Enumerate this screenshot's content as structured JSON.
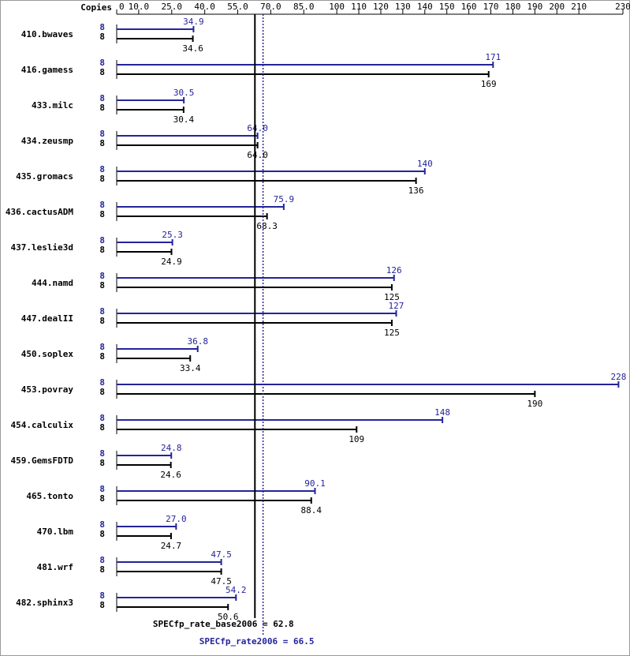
{
  "chart_data": {
    "type": "hbar",
    "copies_header": "Copies",
    "categories": [
      "410.bwaves",
      "416.gamess",
      "433.milc",
      "434.zeusmp",
      "435.gromacs",
      "436.cactusADM",
      "437.leslie3d",
      "444.namd",
      "447.dealII",
      "450.soplex",
      "453.povray",
      "454.calculix",
      "459.GemsFDTD",
      "465.tonto",
      "470.lbm",
      "481.wrf",
      "482.sphinx3"
    ],
    "series": [
      {
        "color": "#24249a",
        "copies": [
          8,
          8,
          8,
          8,
          8,
          8,
          8,
          8,
          8,
          8,
          8,
          8,
          8,
          8,
          8,
          8,
          8
        ],
        "values": [
          34.9,
          171,
          30.5,
          64.0,
          140,
          75.9,
          25.3,
          126,
          127,
          36.8,
          228,
          148,
          24.8,
          90.1,
          27.0,
          47.5,
          54.2
        ],
        "value_labels": [
          "34.9",
          "171",
          "30.5",
          "64.0",
          "140",
          "75.9",
          "25.3",
          "126",
          "127",
          "36.8",
          "228",
          "148",
          "24.8",
          "90.1",
          "27.0",
          "47.5",
          "54.2"
        ]
      },
      {
        "color": "#000000",
        "copies": [
          8,
          8,
          8,
          8,
          8,
          8,
          8,
          8,
          8,
          8,
          8,
          8,
          8,
          8,
          8,
          8,
          8
        ],
        "values": [
          34.6,
          169,
          30.4,
          64.0,
          136,
          68.3,
          24.9,
          125,
          125,
          33.4,
          190,
          109,
          24.6,
          88.4,
          24.7,
          47.5,
          50.6
        ],
        "value_labels": [
          "34.6",
          "169",
          "30.4",
          "64.0",
          "136",
          "68.3",
          "24.9",
          "125",
          "125",
          "33.4",
          "190",
          "109",
          "24.6",
          "88.4",
          "24.7",
          "47.5",
          "50.6"
        ]
      }
    ],
    "xlim": [
      0,
      230
    ],
    "xticks": [
      0,
      {
        "value": 10,
        "label": "10.0"
      },
      {
        "value": 25,
        "label": "25.0"
      },
      {
        "value": 40,
        "label": "40.0"
      },
      {
        "value": 55,
        "label": "55.0"
      },
      {
        "value": 70,
        "label": "70.0"
      },
      {
        "value": 85,
        "label": "85.0"
      },
      100,
      110,
      120,
      130,
      140,
      150,
      160,
      170,
      180,
      190,
      200,
      210,
      230
    ],
    "reference_lines": [
      {
        "label": "SPECfp_rate_base2006 = 62.8",
        "value": 62.8,
        "color": "#000000",
        "style": "solid"
      },
      {
        "label": "SPECfp_rate2006 = 66.5",
        "value": 66.5,
        "color": "#24249a",
        "style": "dotted"
      }
    ]
  }
}
